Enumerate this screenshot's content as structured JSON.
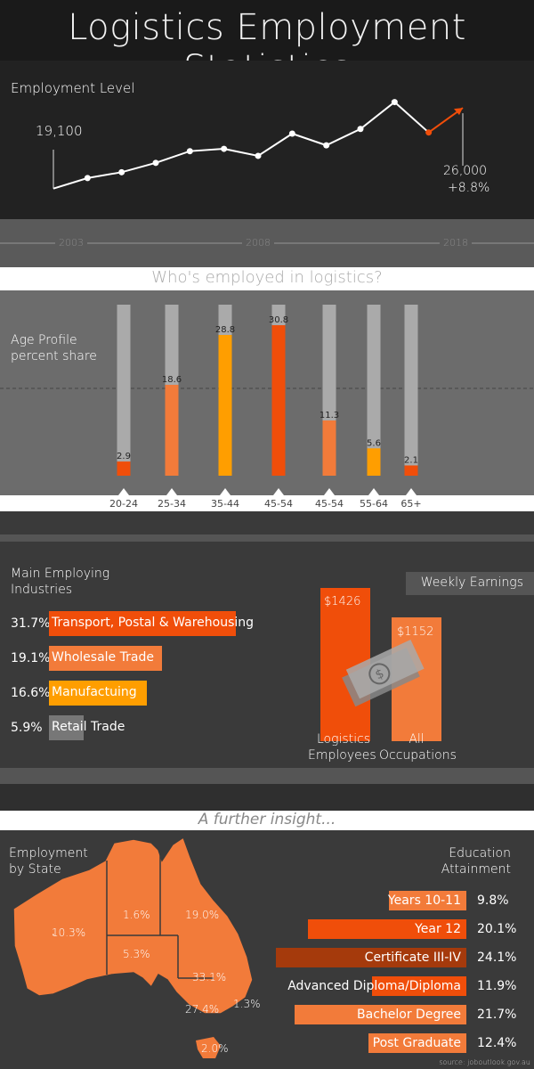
{
  "title": "Logistics Employment Statistics",
  "employment": {
    "label": "Employment Level",
    "start_value": "19,100",
    "end_value": "26,000",
    "end_change": "+8.8%"
  },
  "timeline": {
    "years": [
      "2003",
      "2008",
      "2018"
    ]
  },
  "who_heading": "Who's employed in logistics?",
  "age": {
    "label_line1": "Age Profile",
    "label_line2": "percent share"
  },
  "industries": {
    "label_line1": "Main Employing",
    "label_line2": "Industries",
    "items": [
      {
        "pct": "31.7%",
        "name": "Transport, Postal & Warehousing",
        "value": 31.7,
        "color": "#f04e0a"
      },
      {
        "pct": "19.1%",
        "name": "Wholesale Trade",
        "value": 19.1,
        "color": "#f27b3a"
      },
      {
        "pct": "16.6%",
        "name": "Manufactuing",
        "value": 16.6,
        "color": "#ff9e00"
      },
      {
        "pct": "5.9%",
        "name": "Retail Trade",
        "value": 5.9,
        "color": "#777777"
      }
    ]
  },
  "earnings": {
    "title": "Weekly Earnings",
    "logistics_value": "$1426",
    "logistics_label1": "Logistics",
    "logistics_label2": "Employees",
    "all_value": "$1152",
    "all_label1": "All",
    "all_label2": "Occupations"
  },
  "insight_heading": "A further insight...",
  "state": {
    "label_line1": "Employment",
    "label_line2": "by State",
    "values": {
      "wa": "10.3%",
      "nt": "1.6%",
      "qld": "19.0%",
      "sa": "5.3%",
      "nsw": "33.1%",
      "vic": "27.4%",
      "act": "1.3%",
      "tas": "2.0%"
    }
  },
  "education": {
    "label_line1": "Education",
    "label_line2": "Attainment",
    "items": [
      {
        "name": "Years 10-11",
        "pct": "9.8%",
        "value": 9.8,
        "color": "#f27b3a"
      },
      {
        "name": "Year 12",
        "pct": "20.1%",
        "value": 20.1,
        "color": "#f04e0a"
      },
      {
        "name": "Certificate III-IV",
        "pct": "24.1%",
        "value": 24.1,
        "color": "#a53a0c"
      },
      {
        "name": "Advanced Diploma/Diploma",
        "pct": "11.9%",
        "value": 11.9,
        "color": "#f04e0a"
      },
      {
        "name": "Bachelor Degree",
        "pct": "21.7%",
        "value": 21.7,
        "color": "#f27b3a"
      },
      {
        "name": "Post Graduate",
        "pct": "12.4%",
        "value": 12.4,
        "color": "#f27b3a"
      }
    ]
  },
  "source": "source: joboutlook.gov.au",
  "chart_data": [
    {
      "type": "line",
      "title": "Employment Level",
      "x": [
        2003,
        2004,
        2005,
        2006,
        2007,
        2008,
        2009,
        2010,
        2011,
        2012,
        2013,
        2014,
        2015
      ],
      "values": [
        19100,
        20000,
        20500,
        21300,
        22300,
        22500,
        21900,
        23800,
        22800,
        24200,
        26500,
        23900,
        26000
      ],
      "annotations": [
        "19,100",
        "26,000",
        "+8.8%"
      ],
      "projection_last": true,
      "colors": {
        "line": "#ffffff",
        "projection": "#f04e0a"
      }
    },
    {
      "type": "bar",
      "title": "Age Profile percent share",
      "categories": [
        "20-24",
        "25-34",
        "35-44",
        "45-54",
        "45-54",
        "55-64",
        "65+"
      ],
      "values": [
        2.9,
        18.6,
        28.8,
        30.8,
        11.3,
        5.6,
        2.1
      ],
      "labels": [
        "2.9",
        "18.6",
        "28.8",
        "30.8",
        "11.3",
        "5.6",
        "2.1"
      ],
      "colors": [
        "#f04e0a",
        "#f27b3a",
        "#ff9e00",
        "#f04e0a",
        "#f27b3a",
        "#ff9e00",
        "#f04e0a"
      ],
      "ylim": [
        0,
        35
      ]
    },
    {
      "type": "bar",
      "title": "Main Employing Industries",
      "categories": [
        "Transport, Postal & Warehousing",
        "Wholesale Trade",
        "Manufactuing",
        "Retail Trade"
      ],
      "values": [
        31.7,
        19.1,
        16.6,
        5.9
      ]
    },
    {
      "type": "bar",
      "title": "Weekly Earnings",
      "categories": [
        "Logistics Employees",
        "All Occupations"
      ],
      "values": [
        1426,
        1152
      ]
    },
    {
      "type": "bar",
      "title": "Education Attainment",
      "categories": [
        "Years 10-11",
        "Year 12",
        "Certificate III-IV",
        "Advanced Diploma/Diploma",
        "Bachelor Degree",
        "Post Graduate"
      ],
      "values": [
        9.8,
        20.1,
        24.1,
        11.9,
        21.7,
        12.4
      ]
    }
  ]
}
